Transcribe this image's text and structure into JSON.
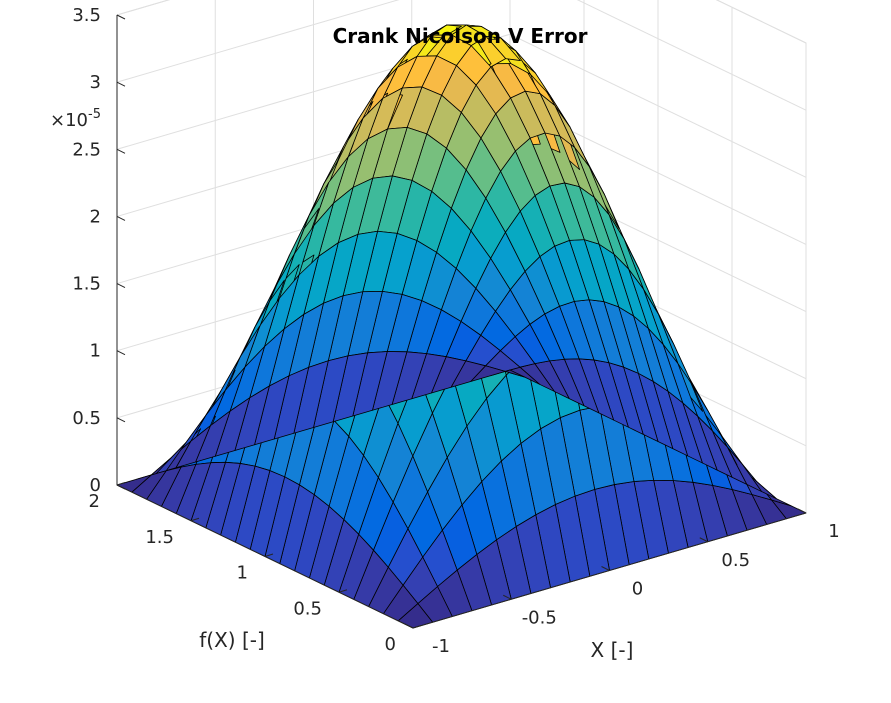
{
  "chart_data": {
    "type": "surface",
    "title": "Crank Nicolson V Error",
    "xlabel": "X [-]",
    "ylabel": "f(X) [-]",
    "zlabel": "",
    "xlim": [
      -1,
      1
    ],
    "ylim": [
      0,
      2
    ],
    "zlim": [
      0,
      3.5e-05
    ],
    "x_ticks": [
      -1,
      -0.5,
      0,
      0.5,
      1
    ],
    "x_tick_labels": [
      "-1",
      "-0.5",
      "0",
      "0.5",
      "1"
    ],
    "y_ticks": [
      0,
      0.5,
      1,
      1.5,
      2
    ],
    "y_tick_labels": [
      "0",
      "0.5",
      "1",
      "1.5",
      "2"
    ],
    "z_ticks": [
      0,
      5e-06,
      1e-05,
      1.5e-05,
      2e-05,
      2.5e-05,
      3e-05,
      3.5e-05
    ],
    "z_tick_labels": [
      "0",
      "0.5",
      "1",
      "1.5",
      "2",
      "2.5",
      "3",
      "3.5"
    ],
    "z_exponent_base": "×10",
    "z_exponent_power": "-5",
    "colormap": "parula",
    "grid": true,
    "mesh_size": [
      21,
      21
    ],
    "surface": {
      "x_range": [
        -1,
        1
      ],
      "y_range": [
        0,
        2
      ],
      "peak": 3.52e-05,
      "shape": "z = peak * cos(pi*x/2) * sin(pi*y/2)"
    }
  }
}
